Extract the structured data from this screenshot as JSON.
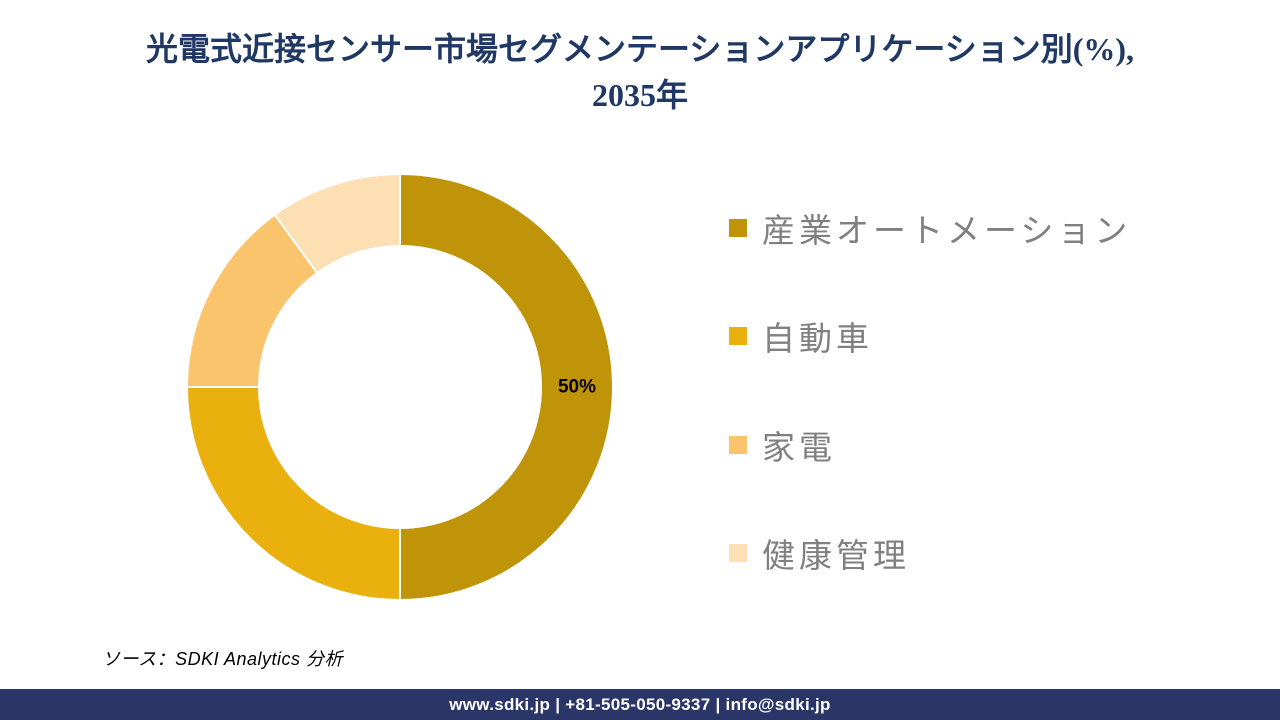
{
  "title": {
    "lines": [
      "光電式近接センサー市場セグメンテーションアプリケーション別(%),",
      "2035年"
    ],
    "color": "#203864"
  },
  "chart_data": {
    "type": "pie",
    "subtype": "donut",
    "title": "光電式近接センサー市場セグメンテーションアプリケーション別(%), 2035年",
    "unit": "%",
    "start_angle_deg": 0,
    "direction": "clockwise",
    "legend_position": "right",
    "inner_radius_ratio": 0.66,
    "segments": [
      {
        "id": "industrial-automation",
        "name": "産業オートメーション",
        "value": 50,
        "color": "#BF9409",
        "label": "50%"
      },
      {
        "id": "automotive",
        "name": "自動車",
        "value": 25,
        "color": "#EAB00E",
        "label": ""
      },
      {
        "id": "consumer-electronics",
        "name": "家電",
        "value": 15,
        "color": "#FAC46C",
        "label": ""
      },
      {
        "id": "healthcare",
        "name": "健康管理",
        "value": 10,
        "color": "#FCDFB2",
        "label": ""
      }
    ]
  },
  "source_note": "ソース：SDKI Analytics 分析",
  "footer": {
    "text": "www.sdki.jp | +81-505-050-9337 | info@sdki.jp",
    "bg_color": "#2A3568"
  },
  "colors": {
    "legend_text": "#808080",
    "slice_label": "#000000",
    "segment_border": "#FFFFFF"
  }
}
